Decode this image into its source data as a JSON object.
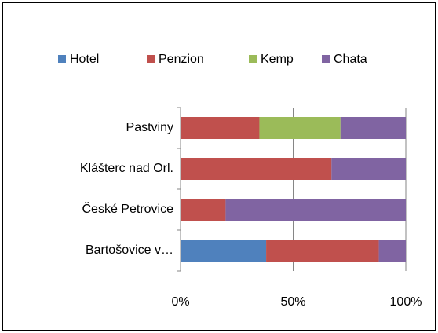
{
  "chart_data": {
    "type": "stacked-bar-horizontal",
    "categories": [
      "Pastviny",
      "Klášterc nad Orl.",
      "České Petrovice",
      "Bartošovice v…"
    ],
    "series": [
      {
        "name": "Hotel",
        "color": "#4f81bd",
        "values": [
          0,
          0,
          0,
          38
        ]
      },
      {
        "name": "Penzion",
        "color": "#c0504d",
        "values": [
          35,
          67,
          20,
          50
        ]
      },
      {
        "name": "Kemp",
        "color": "#9bbb59",
        "values": [
          36,
          0,
          0,
          0
        ]
      },
      {
        "name": "Chata",
        "color": "#8064a2",
        "values": [
          29,
          33,
          80,
          12
        ]
      }
    ],
    "xlim": [
      0,
      100
    ],
    "xticks": [
      {
        "value": 0,
        "label": "0%"
      },
      {
        "value": 50,
        "label": "50%"
      },
      {
        "value": 100,
        "label": "100%"
      }
    ],
    "grid": true,
    "legend": "top"
  }
}
